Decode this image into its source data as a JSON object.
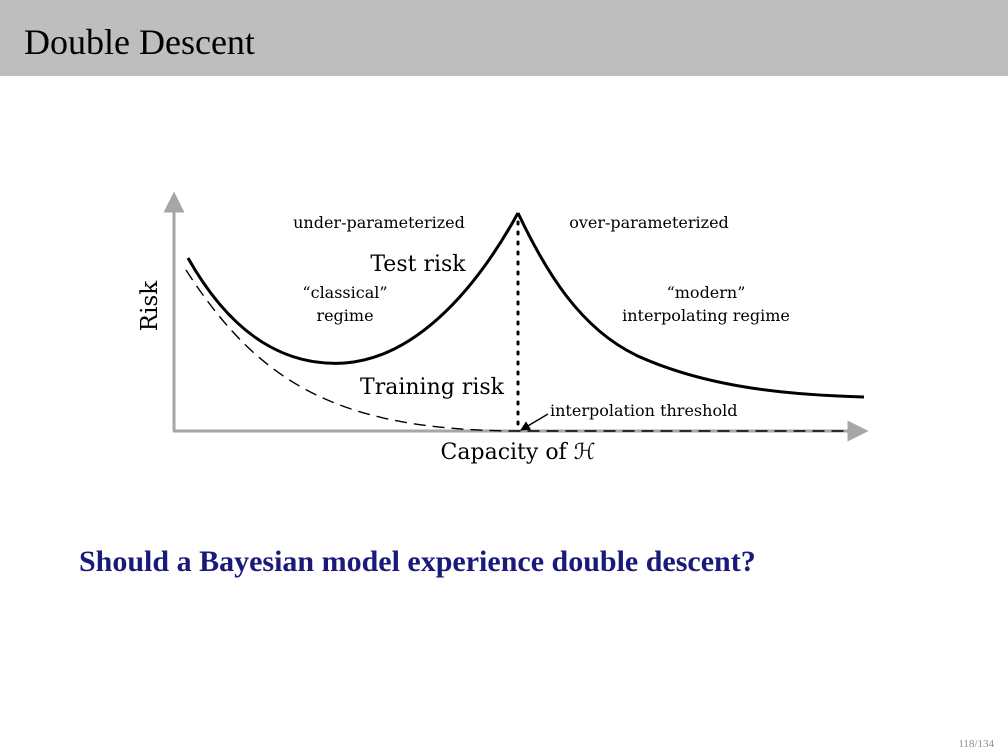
{
  "slide": {
    "title": "Double Descent",
    "question": "Should a Bayesian model experience double descent?",
    "page_current": "118",
    "page_separator": "/",
    "page_total": "134"
  },
  "figure": {
    "y_axis_label": "Risk",
    "x_axis_label": "Capacity of ℋ",
    "under_label": "under-parameterized",
    "over_label": "over-parameterized",
    "test_risk_label": "Test risk",
    "training_risk_label": "Training risk",
    "classical_line1": "“classical”",
    "classical_line2": "regime",
    "modern_line1": "“modern”",
    "modern_line2": "interpolating regime",
    "threshold_label": "interpolation threshold",
    "colors": {
      "axis": "#a6a6a6",
      "curve": "#000000",
      "title_bar": "#bebebe",
      "question": "#1a1a7a"
    }
  }
}
